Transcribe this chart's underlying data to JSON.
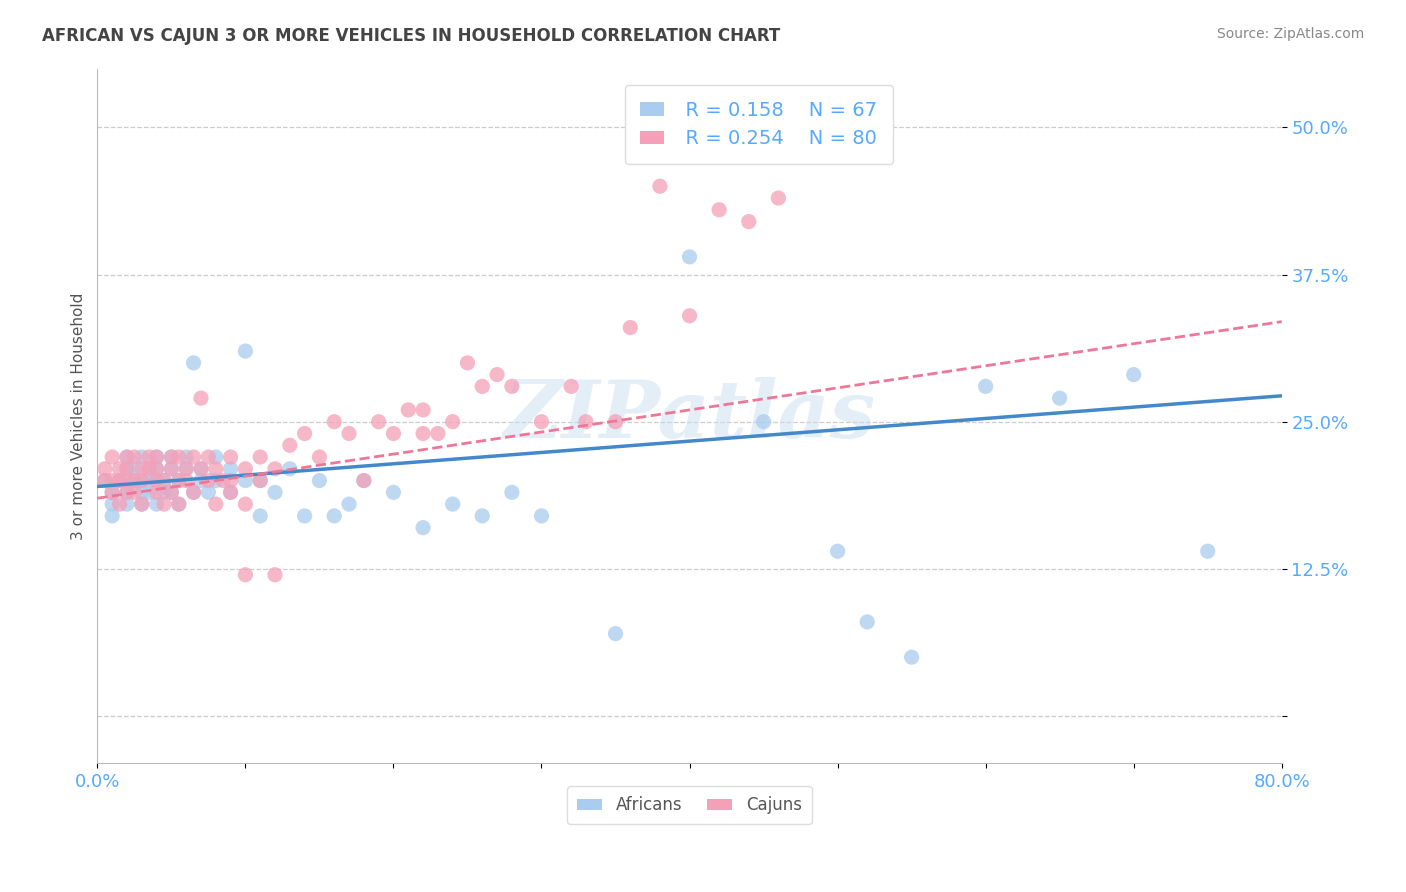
{
  "title": "AFRICAN VS CAJUN 3 OR MORE VEHICLES IN HOUSEHOLD CORRELATION CHART",
  "source": "Source: ZipAtlas.com",
  "ylabel": "3 or more Vehicles in Household",
  "xlim": [
    0.0,
    0.8
  ],
  "ylim": [
    -0.04,
    0.55
  ],
  "yticks": [
    0.0,
    0.125,
    0.25,
    0.375,
    0.5
  ],
  "ytick_labels": [
    "",
    "12.5%",
    "25.0%",
    "37.5%",
    "50.0%"
  ],
  "xtick_positions": [
    0.0,
    0.1,
    0.2,
    0.3,
    0.4,
    0.5,
    0.6,
    0.7,
    0.8
  ],
  "xtick_labels": [
    "0.0%",
    "",
    "",
    "",
    "",
    "",
    "",
    "",
    "80.0%"
  ],
  "legend_african_R": "R = 0.158",
  "legend_african_N": "N = 67",
  "legend_cajun_R": "R = 0.254",
  "legend_cajun_N": "N = 80",
  "color_african": "#aaccee",
  "color_cajun": "#f4a0b8",
  "color_line_african": "#4488cc",
  "color_line_cajun": "#ee7799",
  "color_tick_labels": "#55aaff",
  "color_title": "#444444",
  "color_source": "#888888",
  "watermark": "ZIPatlas",
  "watermark_color": "#cce0f0",
  "africans_x": [
    0.005,
    0.01,
    0.01,
    0.01,
    0.015,
    0.02,
    0.02,
    0.02,
    0.02,
    0.025,
    0.025,
    0.03,
    0.03,
    0.03,
    0.03,
    0.035,
    0.035,
    0.035,
    0.04,
    0.04,
    0.04,
    0.04,
    0.045,
    0.045,
    0.05,
    0.05,
    0.05,
    0.055,
    0.055,
    0.06,
    0.06,
    0.065,
    0.065,
    0.07,
    0.07,
    0.075,
    0.08,
    0.08,
    0.09,
    0.09,
    0.1,
    0.1,
    0.11,
    0.11,
    0.12,
    0.13,
    0.14,
    0.15,
    0.16,
    0.17,
    0.18,
    0.2,
    0.22,
    0.24,
    0.26,
    0.28,
    0.3,
    0.35,
    0.4,
    0.45,
    0.5,
    0.52,
    0.55,
    0.6,
    0.65,
    0.7,
    0.75
  ],
  "africans_y": [
    0.2,
    0.18,
    0.17,
    0.19,
    0.2,
    0.22,
    0.21,
    0.19,
    0.18,
    0.2,
    0.21,
    0.19,
    0.2,
    0.22,
    0.18,
    0.21,
    0.2,
    0.19,
    0.22,
    0.2,
    0.18,
    0.21,
    0.2,
    0.19,
    0.22,
    0.21,
    0.19,
    0.2,
    0.18,
    0.22,
    0.21,
    0.3,
    0.19,
    0.21,
    0.2,
    0.19,
    0.22,
    0.2,
    0.21,
    0.19,
    0.31,
    0.2,
    0.17,
    0.2,
    0.19,
    0.21,
    0.17,
    0.2,
    0.17,
    0.18,
    0.2,
    0.19,
    0.16,
    0.18,
    0.17,
    0.19,
    0.17,
    0.07,
    0.39,
    0.25,
    0.14,
    0.08,
    0.05,
    0.28,
    0.27,
    0.29,
    0.14
  ],
  "cajuns_x": [
    0.005,
    0.005,
    0.01,
    0.01,
    0.01,
    0.015,
    0.015,
    0.015,
    0.02,
    0.02,
    0.02,
    0.02,
    0.025,
    0.025,
    0.025,
    0.03,
    0.03,
    0.03,
    0.035,
    0.035,
    0.04,
    0.04,
    0.04,
    0.04,
    0.045,
    0.045,
    0.05,
    0.05,
    0.05,
    0.055,
    0.055,
    0.055,
    0.06,
    0.06,
    0.065,
    0.065,
    0.07,
    0.07,
    0.075,
    0.075,
    0.08,
    0.08,
    0.085,
    0.09,
    0.09,
    0.09,
    0.1,
    0.1,
    0.1,
    0.11,
    0.11,
    0.12,
    0.12,
    0.13,
    0.14,
    0.15,
    0.16,
    0.17,
    0.18,
    0.19,
    0.2,
    0.21,
    0.22,
    0.22,
    0.23,
    0.24,
    0.25,
    0.26,
    0.27,
    0.28,
    0.3,
    0.32,
    0.33,
    0.35,
    0.36,
    0.38,
    0.4,
    0.42,
    0.44,
    0.46
  ],
  "cajuns_y": [
    0.2,
    0.21,
    0.19,
    0.2,
    0.22,
    0.21,
    0.2,
    0.18,
    0.22,
    0.2,
    0.19,
    0.21,
    0.2,
    0.22,
    0.19,
    0.21,
    0.2,
    0.18,
    0.22,
    0.21,
    0.2,
    0.19,
    0.22,
    0.21,
    0.2,
    0.18,
    0.22,
    0.21,
    0.19,
    0.2,
    0.22,
    0.18,
    0.21,
    0.2,
    0.22,
    0.19,
    0.21,
    0.27,
    0.2,
    0.22,
    0.21,
    0.18,
    0.2,
    0.22,
    0.2,
    0.19,
    0.21,
    0.18,
    0.12,
    0.22,
    0.2,
    0.12,
    0.21,
    0.23,
    0.24,
    0.22,
    0.25,
    0.24,
    0.2,
    0.25,
    0.24,
    0.26,
    0.24,
    0.26,
    0.24,
    0.25,
    0.3,
    0.28,
    0.29,
    0.28,
    0.25,
    0.28,
    0.25,
    0.25,
    0.33,
    0.45,
    0.34,
    0.43,
    0.42,
    0.44
  ],
  "african_line_x0": 0.0,
  "african_line_y0": 0.195,
  "african_line_x1": 0.8,
  "african_line_y1": 0.272,
  "cajun_line_x0": 0.0,
  "cajun_line_y0": 0.185,
  "cajun_line_x1": 0.8,
  "cajun_line_y1": 0.335
}
